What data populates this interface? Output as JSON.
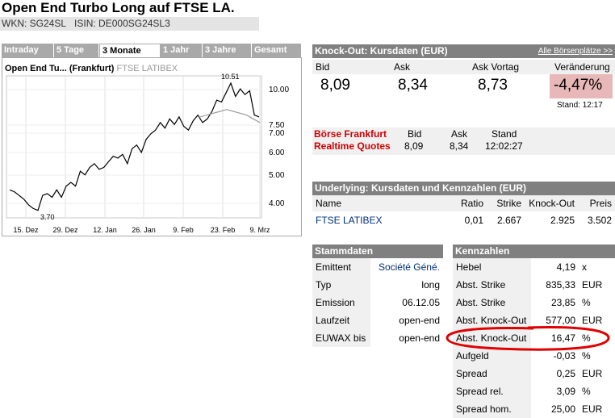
{
  "header": {
    "title": "Open End Turbo Long auf FTSE LA.",
    "wkn_label": "WKN: SG24SL",
    "isin_label": "ISIN: DE000SG24SL3"
  },
  "chart_tabs": [
    "Intraday",
    "5 Tage",
    "3 Monate",
    "1 Jahr",
    "3 Jahre",
    "Gesamt"
  ],
  "chart_header": {
    "name": "Open End Tu...",
    "exchange": "(Frankfurt)",
    "underlying": "FTSE LATIBEX"
  },
  "chart_data": {
    "type": "line",
    "x_ticks": [
      "15. Dez",
      "29. Dez",
      "12. Jan",
      "26. Jan",
      "9. Feb",
      "23. Feb",
      "9. Mrz"
    ],
    "y_ticks_right": [
      "10.00",
      "7.50",
      "7.00",
      "6.00",
      "5.00",
      "4.00"
    ],
    "annotations": [
      "10.51",
      "3.70"
    ],
    "series": [
      {
        "values": [
          4.8,
          4.7,
          4.5,
          4.3,
          4.0,
          3.8,
          3.7,
          4.5,
          4.6,
          4.4,
          4.8,
          4.4,
          5.0,
          5.2,
          5.0,
          5.8,
          5.6,
          6.0,
          6.2,
          5.9,
          6.0,
          6.3,
          6.6,
          6.5,
          6.7,
          6.2,
          7.0,
          7.2,
          6.8,
          7.5,
          7.8,
          8.0,
          8.4,
          8.1,
          8.6,
          8.3,
          8.7,
          8.2,
          8.0,
          8.5,
          8.8,
          8.4,
          8.6,
          9.0,
          9.6,
          9.5,
          10.0,
          10.51,
          9.8,
          10.2,
          9.9,
          10.1,
          8.8,
          8.7
        ]
      },
      {
        "values": [
          8.7,
          8.8,
          8.9,
          9.0,
          9.1,
          9.0,
          8.9,
          8.8,
          8.6,
          8.4
        ]
      }
    ]
  },
  "knockout": {
    "header": "Knock-Out: Kursdaten (EUR)",
    "link": "Alle Börsenplätze >>",
    "labels": [
      "Bid",
      "Ask",
      "Ask Vortag",
      "Veränderung"
    ],
    "values": [
      "8,09",
      "8,34",
      "8,73",
      "-4,47%"
    ],
    "stand": "Stand: 12:17",
    "change_color": "#e8b8b8"
  },
  "realtime": {
    "line1": "Börse Frankfurt",
    "line2": "Realtime Quotes",
    "labels": [
      "Bid",
      "Ask",
      "Stand"
    ],
    "values": [
      "8,09",
      "8,34",
      "12:02:27"
    ]
  },
  "underlying": {
    "header": "Underlying: Kursdaten und Kennzahlen (EUR)",
    "columns": [
      "Name",
      "Ratio",
      "Strike",
      "Knock-Out",
      "Preis"
    ],
    "row": [
      "FTSE LATIBEX",
      "0,01",
      "2.667",
      "2.925",
      "3.502"
    ]
  },
  "stammdaten": {
    "header": "Stammdaten",
    "rows": [
      {
        "label": "Emittent",
        "value": "Société Géné."
      },
      {
        "label": "Typ",
        "value": "long"
      },
      {
        "label": "Emission",
        "value": "06.12.05"
      },
      {
        "label": "Laufzeit",
        "value": "open-end"
      },
      {
        "label": "EUWAX bis",
        "value": "open-end"
      }
    ]
  },
  "kennzahlen": {
    "header": "Kennzahlen",
    "rows": [
      {
        "label": "Hebel",
        "value": "4,19",
        "unit": "x"
      },
      {
        "label": "Abst. Strike",
        "value": "835,33",
        "unit": "EUR"
      },
      {
        "label": "Abst. Strike",
        "value": "23,85",
        "unit": "%"
      },
      {
        "label": "Abst. Knock-Out",
        "value": "577,00",
        "unit": "EUR"
      },
      {
        "label": "Abst. Knock-Out",
        "value": "16,47",
        "unit": "%"
      },
      {
        "label": "Aufgeld",
        "value": "-0,03",
        "unit": "%"
      },
      {
        "label": "Spread",
        "value": "0,25",
        "unit": "EUR"
      },
      {
        "label": "Spread rel.",
        "value": "3,09",
        "unit": "%"
      },
      {
        "label": "Spread hom.",
        "value": "25,00",
        "unit": "EUR"
      }
    ]
  }
}
